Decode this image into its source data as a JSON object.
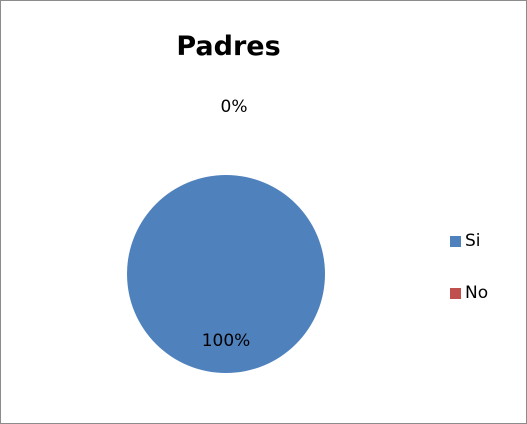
{
  "chart_data": {
    "type": "pie",
    "title": "Padres",
    "categories": [
      "Si",
      "No"
    ],
    "values": [
      100,
      0
    ],
    "data_labels": [
      "100%",
      "0%"
    ],
    "colors": [
      "#4F81BD",
      "#C0504D"
    ],
    "legend_position": "right"
  }
}
